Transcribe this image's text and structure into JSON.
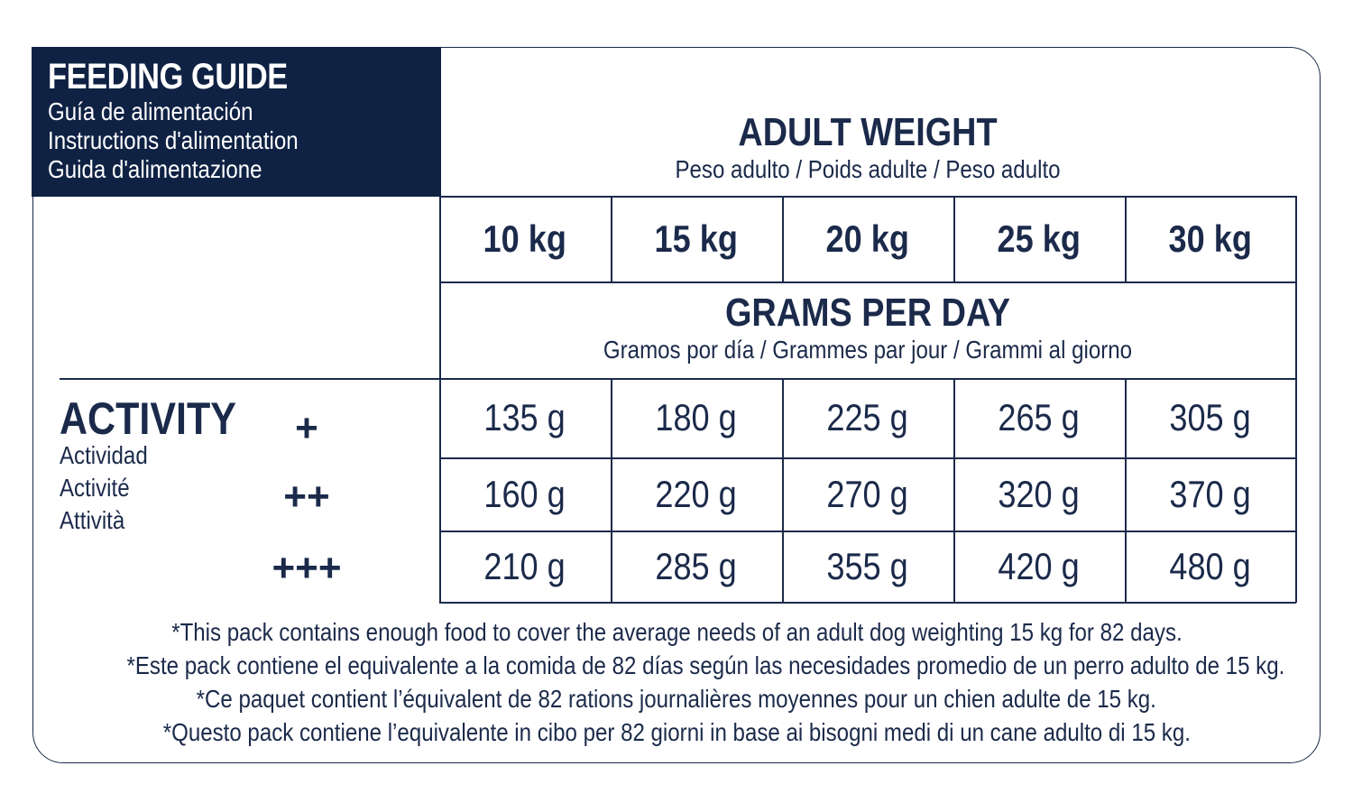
{
  "title": {
    "main": "FEEDING GUIDE",
    "sub": [
      "Guía de alimentación",
      "Instructions d'alimentation",
      "Guida d'alimentazione"
    ]
  },
  "adult_weight": {
    "main": "ADULT WEIGHT",
    "sub": "Peso adulto / Poids adulte / Peso adulto"
  },
  "weights": [
    "10 kg",
    "15 kg",
    "20 kg",
    "25 kg",
    "30 kg"
  ],
  "grams_per_day": {
    "main": "GRAMS PER DAY",
    "sub": "Gramos por día / Grammes par jour / Grammi al giorno"
  },
  "activity": {
    "main": "ACTIVITY",
    "sub": [
      "Actividad",
      "Activité",
      "Attività"
    ],
    "levels": [
      "+",
      "++",
      "+++"
    ]
  },
  "rows": [
    [
      "135 g",
      "180 g",
      "225 g",
      "265 g",
      "305 g"
    ],
    [
      "160 g",
      "220 g",
      "270 g",
      "320 g",
      "370 g"
    ],
    [
      "210 g",
      "285 g",
      "355 g",
      "420 g",
      "480 g"
    ]
  ],
  "notes": [
    "*This pack contains enough food to cover the average needs of an adult dog weighting 15 kg for 82 days.",
    "*Este pack contiene el equivalente a la comida de 82 días según las necesidades promedio de un perro adulto de 15 kg.",
    "*Ce paquet contient l’équivalent de 82 rations journalières moyennes pour un chien adulte de 15 kg.",
    "*Questo pack contiene l’equivalente in cibo per 82 giorni in base ai bisogni medi di un cane adulto di 15 kg."
  ],
  "colors": {
    "navy": "#0f2244",
    "ink": "#1b2a4a",
    "background": "#ffffff"
  }
}
